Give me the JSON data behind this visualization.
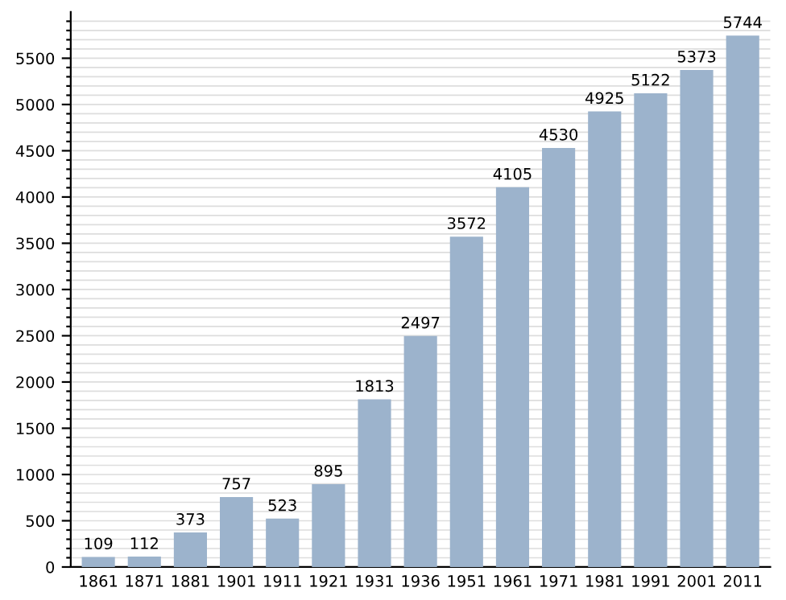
{
  "chart_data": {
    "type": "bar",
    "categories": [
      "1861",
      "1871",
      "1881",
      "1901",
      "1911",
      "1921",
      "1931",
      "1936",
      "1951",
      "1961",
      "1971",
      "1981",
      "1991",
      "2001",
      "2011"
    ],
    "values": [
      109,
      112,
      373,
      757,
      523,
      895,
      1813,
      2497,
      3572,
      4105,
      4530,
      4925,
      5122,
      5373,
      5744
    ],
    "color": "#9cb3cc",
    "data_labels": true,
    "grid": "y",
    "ylim": [
      0,
      6000
    ],
    "yticks": [
      0,
      {
        "value": 100,
        "label": null
      },
      {
        "value": 200,
        "label": null
      },
      {
        "value": 300,
        "label": null
      },
      {
        "value": 400,
        "label": null
      },
      500,
      {
        "value": 600,
        "label": null
      },
      {
        "value": 700,
        "label": null
      },
      {
        "value": 800,
        "label": null
      },
      {
        "value": 900,
        "label": null
      },
      1000,
      {
        "value": 1100,
        "label": null
      },
      {
        "value": 1200,
        "label": null
      },
      {
        "value": 1300,
        "label": null
      },
      {
        "value": 1400,
        "label": null
      },
      1500,
      {
        "value": 1600,
        "label": null
      },
      {
        "value": 1700,
        "label": null
      },
      {
        "value": 1800,
        "label": null
      },
      {
        "value": 1900,
        "label": null
      },
      2000,
      {
        "value": 2100,
        "label": null
      },
      {
        "value": 2200,
        "label": null
      },
      {
        "value": 2300,
        "label": null
      },
      {
        "value": 2400,
        "label": null
      },
      2500,
      {
        "value": 2600,
        "label": null
      },
      {
        "value": 2700,
        "label": null
      },
      {
        "value": 2800,
        "label": null
      },
      {
        "value": 2900,
        "label": null
      },
      3000,
      {
        "value": 3100,
        "label": null
      },
      {
        "value": 3200,
        "label": null
      },
      {
        "value": 3300,
        "label": null
      },
      {
        "value": 3400,
        "label": null
      },
      3500,
      {
        "value": 3600,
        "label": null
      },
      {
        "value": 3700,
        "label": null
      },
      {
        "value": 3800,
        "label": null
      },
      {
        "value": 3900,
        "label": null
      },
      4000,
      {
        "value": 4100,
        "label": null
      },
      {
        "value": 4200,
        "label": null
      },
      {
        "value": 4300,
        "label": null
      },
      {
        "value": 4400,
        "label": null
      },
      4500,
      {
        "value": 4600,
        "label": null
      },
      {
        "value": 4700,
        "label": null
      },
      {
        "value": 4800,
        "label": null
      },
      {
        "value": 4900,
        "label": null
      },
      5000,
      {
        "value": 5100,
        "label": null
      },
      {
        "value": 5200,
        "label": null
      },
      {
        "value": 5300,
        "label": null
      },
      {
        "value": 5400,
        "label": null
      },
      5500,
      {
        "value": 5600,
        "label": null
      },
      {
        "value": 5700,
        "label": null
      },
      {
        "value": 5800,
        "label": null
      },
      {
        "value": 5900,
        "label": null
      }
    ]
  }
}
